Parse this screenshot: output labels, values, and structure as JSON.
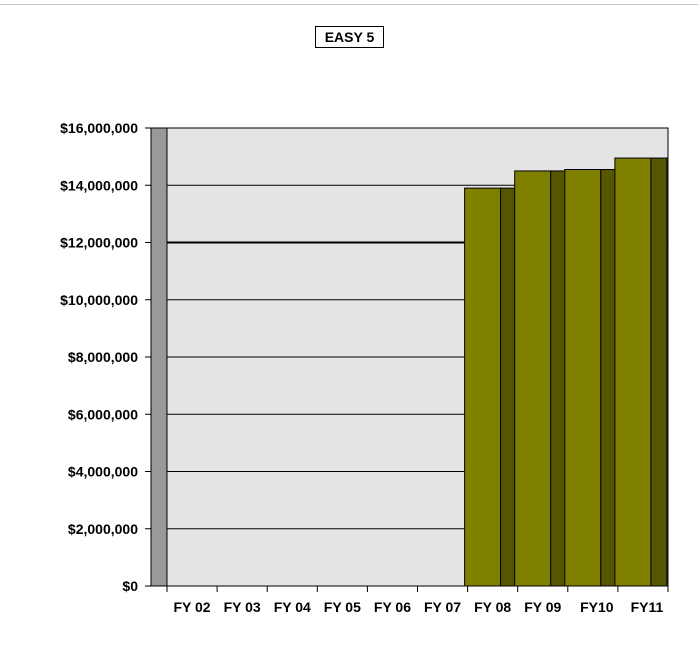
{
  "chart_data": {
    "type": "bar",
    "title": "EASY 5",
    "xlabel": "",
    "ylabel": "",
    "categories": [
      "FY 02",
      "FY 03",
      "FY 04",
      "FY 05",
      "FY 06",
      "FY 07",
      "FY 08",
      "FY 09",
      "FY10",
      "FY11"
    ],
    "values": [
      null,
      null,
      null,
      null,
      null,
      null,
      13900000,
      14500000,
      14550000,
      14950000
    ],
    "ylim": [
      0,
      16000000
    ],
    "yticks": [
      0,
      2000000,
      4000000,
      6000000,
      8000000,
      10000000,
      12000000,
      14000000,
      16000000
    ],
    "ytick_labels": [
      "$0",
      "$2,000,000",
      "$4,000,000",
      "$6,000,000",
      "$8,000,000",
      "$10,000,000",
      "$12,000,000",
      "$14,000,000",
      "$16,000,000"
    ],
    "grid": true,
    "legend": "none",
    "style": "3d",
    "colors": {
      "bar_front": "#808000",
      "bar_side": "#565600",
      "plot_wall": "#e4e4e4",
      "side_wall": "#999999",
      "gridline": "#000000"
    }
  }
}
